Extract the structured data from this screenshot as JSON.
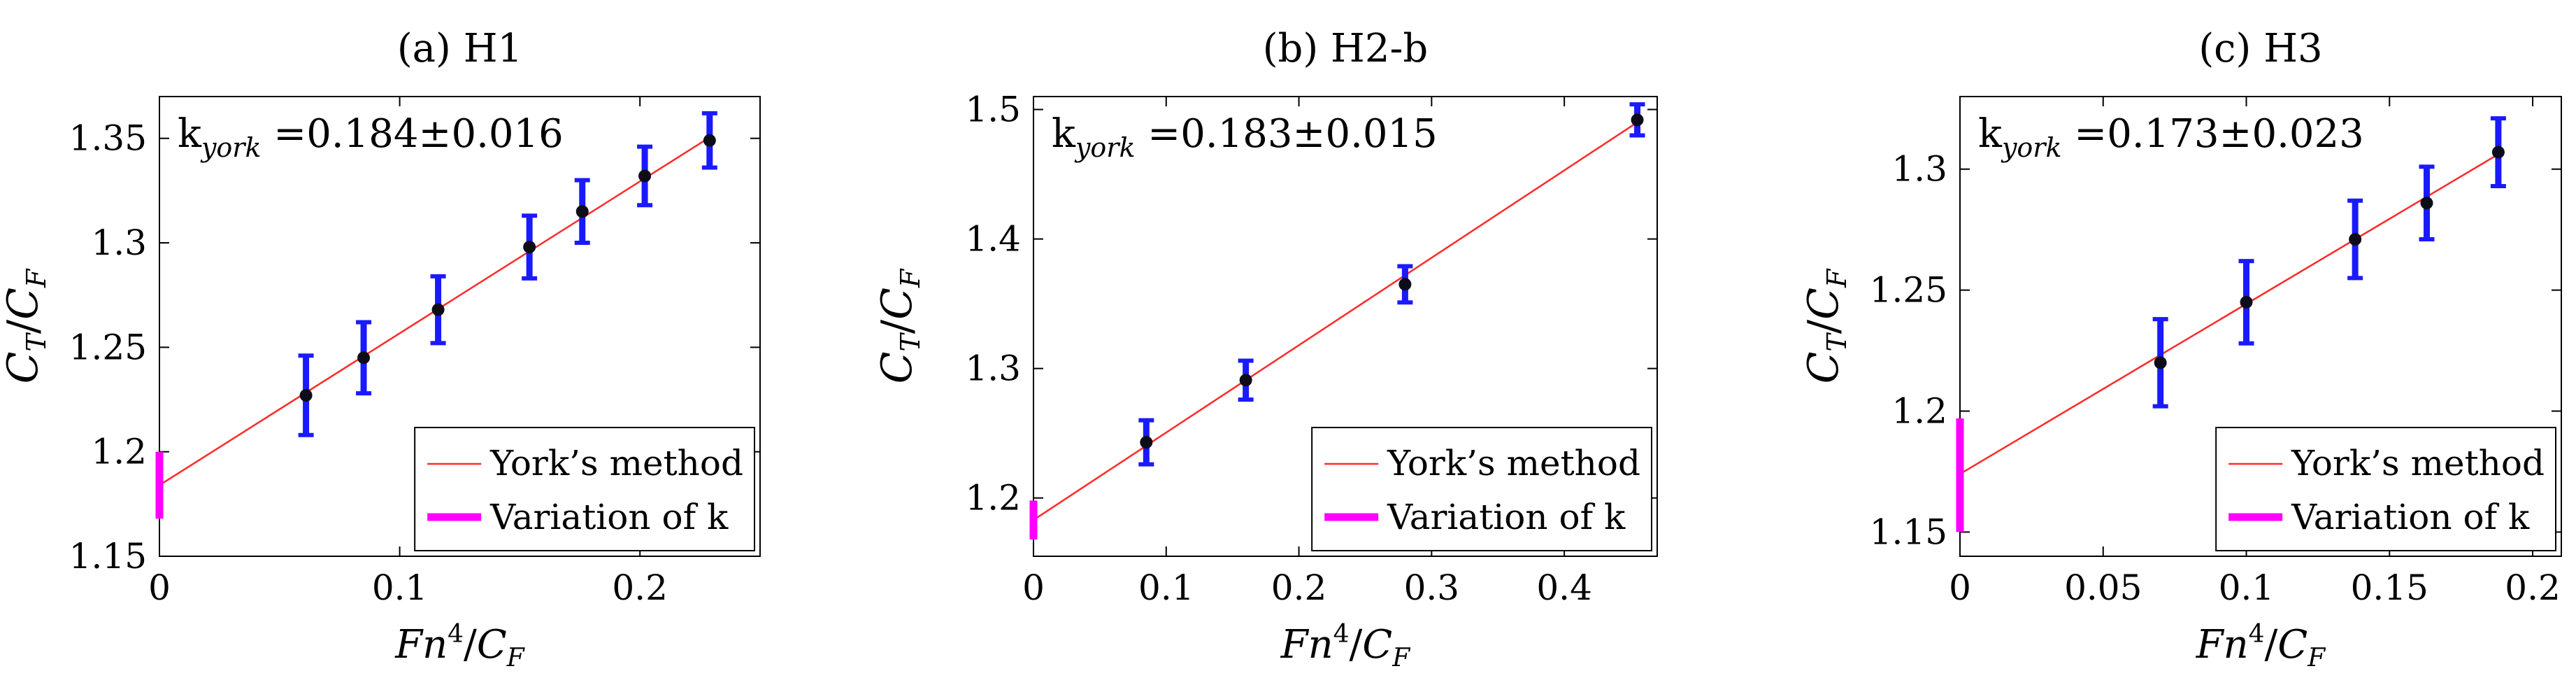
{
  "chart_data": [
    {
      "type": "scatter",
      "title": "(a) H1",
      "xlabel": "Fn^4/C_F",
      "ylabel": "C_T/C_F",
      "xlim": [
        0,
        0.25
      ],
      "ylim": [
        1.15,
        1.37
      ],
      "xticks": [
        0,
        0.1,
        0.2
      ],
      "xtick_labels": [
        "0",
        "0.1",
        "0.2"
      ],
      "yticks": [
        1.15,
        1.2,
        1.25,
        1.3,
        1.35
      ],
      "ytick_labels": [
        "1.15",
        "1.2",
        "1.25",
        "1.3",
        "1.35"
      ],
      "annotation": {
        "prefix": "k",
        "subscript": "york",
        "value": "=0.184±0.016"
      },
      "points": [
        {
          "x": 0.061,
          "y": 1.227,
          "err": 0.019
        },
        {
          "x": 0.085,
          "y": 1.245,
          "err": 0.017
        },
        {
          "x": 0.116,
          "y": 1.268,
          "err": 0.016
        },
        {
          "x": 0.154,
          "y": 1.298,
          "err": 0.015
        },
        {
          "x": 0.176,
          "y": 1.315,
          "err": 0.015
        },
        {
          "x": 0.202,
          "y": 1.332,
          "err": 0.014
        },
        {
          "x": 0.229,
          "y": 1.349,
          "err": 0.013
        }
      ],
      "fit_line": {
        "intercept": 1.184,
        "slope": 0.727
      },
      "variation_of_k": {
        "x": 0,
        "y_low": 1.168,
        "y_high": 1.2
      },
      "legend": [
        "York’s method",
        "Variation of k"
      ]
    },
    {
      "type": "scatter",
      "title": "(b) H2-b",
      "xlabel": "Fn^4/C_F",
      "ylabel": "C_T/C_F",
      "xlim": [
        0,
        0.47
      ],
      "ylim": [
        1.155,
        1.51
      ],
      "xticks": [
        0,
        0.1,
        0.2,
        0.3,
        0.4
      ],
      "xtick_labels": [
        "0",
        "0.1",
        "0.2",
        "0.3",
        "0.4"
      ],
      "yticks": [
        1.2,
        1.3,
        1.4,
        1.5
      ],
      "ytick_labels": [
        "1.2",
        "1.3",
        "1.4",
        "1.5"
      ],
      "annotation": {
        "prefix": "k",
        "subscript": "york",
        "value": "=0.183±0.015"
      },
      "points": [
        {
          "x": 0.085,
          "y": 1.243,
          "err": 0.017
        },
        {
          "x": 0.16,
          "y": 1.291,
          "err": 0.015
        },
        {
          "x": 0.28,
          "y": 1.365,
          "err": 0.014
        },
        {
          "x": 0.455,
          "y": 1.492,
          "err": 0.012
        }
      ],
      "fit_line": {
        "intercept": 1.183,
        "slope": 0.675
      },
      "variation_of_k": {
        "x": 0,
        "y_low": 1.168,
        "y_high": 1.198
      },
      "legend": [
        "York’s method",
        "Variation of k"
      ]
    },
    {
      "type": "scatter",
      "title": "(c) H3",
      "xlabel": "Fn^4/C_F",
      "ylabel": "C_T/C_F",
      "xlim": [
        0,
        0.21
      ],
      "ylim": [
        1.14,
        1.33
      ],
      "xticks": [
        0,
        0.05,
        0.1,
        0.15,
        0.2
      ],
      "xtick_labels": [
        "0",
        "0.05",
        "0.1",
        "0.15",
        "0.2"
      ],
      "yticks": [
        1.15,
        1.2,
        1.25,
        1.3
      ],
      "ytick_labels": [
        "1.15",
        "1.2",
        "1.25",
        "1.3"
      ],
      "annotation": {
        "prefix": "k",
        "subscript": "york",
        "value": "=0.173±0.023"
      },
      "points": [
        {
          "x": 0.07,
          "y": 1.22,
          "err": 0.018
        },
        {
          "x": 0.1,
          "y": 1.245,
          "err": 0.017
        },
        {
          "x": 0.138,
          "y": 1.271,
          "err": 0.016
        },
        {
          "x": 0.163,
          "y": 1.286,
          "err": 0.015
        },
        {
          "x": 0.188,
          "y": 1.307,
          "err": 0.014
        }
      ],
      "fit_line": {
        "intercept": 1.174,
        "slope": 0.703
      },
      "variation_of_k": {
        "x": 0,
        "y_low": 1.15,
        "y_high": 1.197
      },
      "legend": [
        "York’s method",
        "Variation of k"
      ]
    }
  ],
  "colors": {
    "fit_line": "#ff2a2a",
    "error_bar": "#1a1aff",
    "point": "#0d0d1a",
    "variation_bar": "#ff00ff",
    "axis": "#000000"
  }
}
